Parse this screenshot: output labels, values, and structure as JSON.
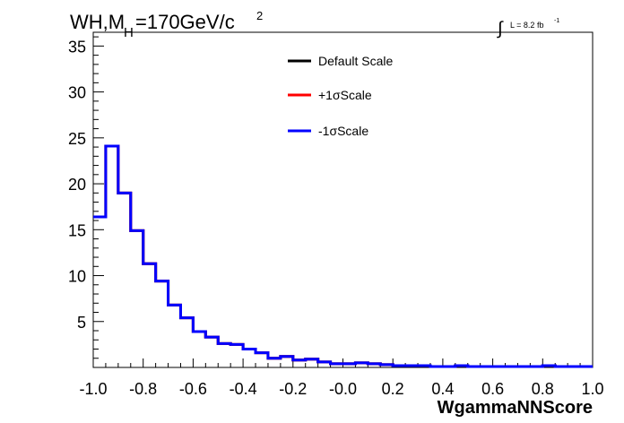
{
  "header": {
    "title_main": "WH,M",
    "title_sub": "H",
    "title_rest": "=170GeV/c",
    "title_sup": "2",
    "lumi_symbol": "∫",
    "lumi_text": "L = 8.2 fb",
    "lumi_sup": "-1"
  },
  "chart_data": {
    "type": "line",
    "xlabel": "WgammaNNScore",
    "ylabel": "",
    "xlim": [
      -1.0,
      1.0
    ],
    "ylim": [
      0,
      36.5
    ],
    "grid": false,
    "legend_position": "top-center",
    "x_ticks": [
      "-1.0",
      "-0.8",
      "-0.6",
      "-0.4",
      "-0.2",
      "-0.0",
      "0.2",
      "0.4",
      "0.6",
      "0.8",
      "1.0"
    ],
    "y_ticks": [
      "5",
      "10",
      "15",
      "20",
      "25",
      "30",
      "35"
    ],
    "bin_edges_start": -1.0,
    "bin_width": 0.05,
    "series": [
      {
        "name": "Default Scale",
        "color": "#000000",
        "values": [
          16.4,
          24.1,
          19.0,
          14.9,
          11.3,
          9.4,
          6.8,
          5.4,
          3.9,
          3.3,
          2.6,
          2.5,
          2.0,
          1.6,
          1.0,
          1.2,
          0.8,
          0.9,
          0.6,
          0.4,
          0.4,
          0.5,
          0.4,
          0.3,
          0.2,
          0.2,
          0.2,
          0.1,
          0.1,
          0.2,
          0.1,
          0.1,
          0.1,
          0.1,
          0.1,
          0.1,
          0.2,
          0.1,
          0.1,
          0.1
        ]
      },
      {
        "name": "+1σScale",
        "color": "#ff0000",
        "values": [
          16.4,
          24.1,
          19.0,
          14.9,
          11.3,
          9.4,
          6.8,
          5.4,
          3.9,
          3.3,
          2.6,
          2.5,
          2.0,
          1.6,
          1.0,
          1.2,
          0.8,
          0.9,
          0.6,
          0.4,
          0.4,
          0.5,
          0.4,
          0.3,
          0.2,
          0.2,
          0.2,
          0.1,
          0.1,
          0.2,
          0.1,
          0.1,
          0.1,
          0.1,
          0.1,
          0.1,
          0.2,
          0.1,
          0.1,
          0.1
        ]
      },
      {
        "name": "-1σScale",
        "color": "#0000ff",
        "values": [
          16.4,
          24.1,
          19.0,
          14.9,
          11.3,
          9.4,
          6.8,
          5.4,
          3.9,
          3.3,
          2.6,
          2.5,
          2.0,
          1.6,
          1.0,
          1.2,
          0.8,
          0.9,
          0.6,
          0.4,
          0.4,
          0.5,
          0.4,
          0.3,
          0.2,
          0.2,
          0.2,
          0.1,
          0.1,
          0.2,
          0.1,
          0.1,
          0.1,
          0.1,
          0.1,
          0.1,
          0.2,
          0.1,
          0.1,
          0.1
        ]
      }
    ]
  }
}
